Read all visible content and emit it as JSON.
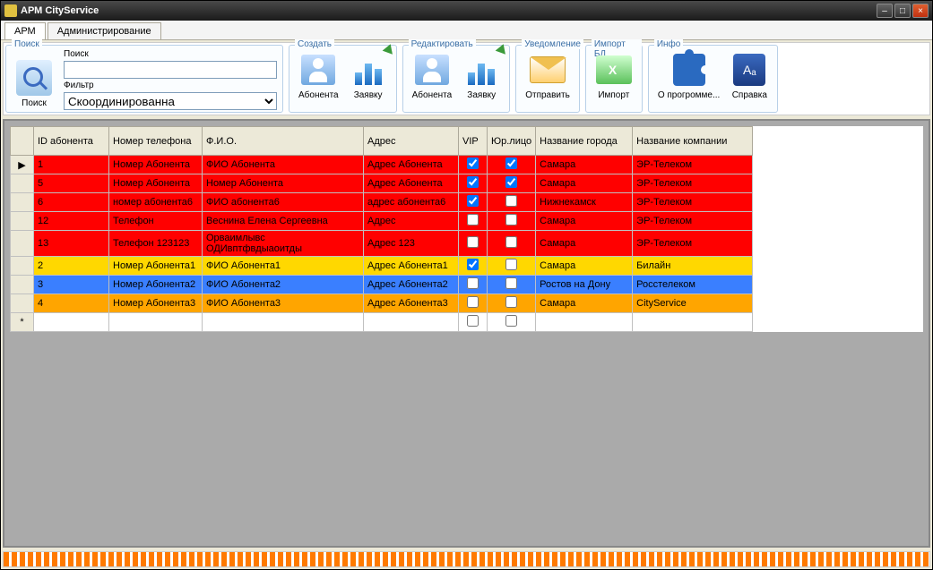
{
  "window": {
    "title": "АРМ CityService"
  },
  "tabs": {
    "arm": "АРМ",
    "admin": "Администрирование"
  },
  "ribbon": {
    "search_group": "Поиск",
    "search_label": "Поиск",
    "search_btn": "Поиск",
    "filter_label": "Фильтр",
    "filter_value": "Скоординированна",
    "create_group": "Создать",
    "edit_group": "Редактировать",
    "abonent": "Абонента",
    "request": "Заявку",
    "notify_group": "Уведомление",
    "send": "Отправить",
    "import_group": "Импорт БД",
    "import": "Импорт",
    "info_group": "Инфо",
    "about": "О прогромме...",
    "help": "Справка"
  },
  "grid": {
    "columns": {
      "id": "ID абонента",
      "phone": "Номер телефона",
      "fio": "Ф.И.О.",
      "addr": "Адрес",
      "vip": "VIP",
      "legal": "Юр.лицо",
      "city": "Название города",
      "company": "Название компании"
    },
    "col_widths": {
      "rowhdr": 26,
      "id": 84,
      "phone": 104,
      "fio": 180,
      "addr": 106,
      "vip": 32,
      "legal": 54,
      "city": 108,
      "company": 134
    },
    "rows": [
      {
        "color": "red",
        "id": "1",
        "phone": "Номер Абонента",
        "fio": "ФИО Абонента",
        "addr": "Адрес Абонента",
        "vip": true,
        "legal": true,
        "city": "Самара",
        "company": "ЭР-Телеком"
      },
      {
        "color": "red",
        "id": "5",
        "phone": "Номер Абонента",
        "fio": "Номер Абонента",
        "addr": "Адрес Абонента",
        "vip": true,
        "legal": true,
        "city": "Самара",
        "company": "ЭР-Телеком"
      },
      {
        "color": "red",
        "id": "6",
        "phone": "номер абонента6",
        "fio": "ФИО абонента6",
        "addr": "адрес абонента6",
        "vip": true,
        "legal": false,
        "city": "Нижнекамск",
        "company": "ЭР-Телеком"
      },
      {
        "color": "red",
        "id": "12",
        "phone": "Телефон",
        "fio": "Веснина Елена Сергеевна",
        "addr": "Адрес",
        "vip": false,
        "legal": false,
        "city": "Самара",
        "company": "ЭР-Телеком"
      },
      {
        "color": "red",
        "id": "13",
        "phone": "Телефон 123123",
        "fio": "Орваимлывс ОДИвптфвдыаоитды",
        "addr": "Адрес 123",
        "vip": false,
        "legal": false,
        "city": "Самара",
        "company": "ЭР-Телеком"
      },
      {
        "color": "yellow",
        "id": "2",
        "phone": "Номер Абонента1",
        "fio": "ФИО Абонента1",
        "addr": "Адрес Абонента1",
        "vip": true,
        "legal": false,
        "city": "Самара",
        "company": "Билайн"
      },
      {
        "color": "blue",
        "id": "3",
        "phone": "Номер Абонента2",
        "fio": "ФИО Абонента2",
        "addr": "Адрес Абонента2",
        "vip": false,
        "legal": false,
        "city": "Ростов на Дону",
        "company": "Росстелеком"
      },
      {
        "color": "orange",
        "id": "4",
        "phone": "Номер Абонента3",
        "fio": "ФИО  Абонента3",
        "addr": "Адрес Абонента3",
        "vip": false,
        "legal": false,
        "city": "Самара",
        "company": "CityService"
      }
    ]
  },
  "row_colors": {
    "red": "#ff0000",
    "yellow": "#ffd800",
    "blue": "#3a7fff",
    "orange": "#ffa500"
  }
}
